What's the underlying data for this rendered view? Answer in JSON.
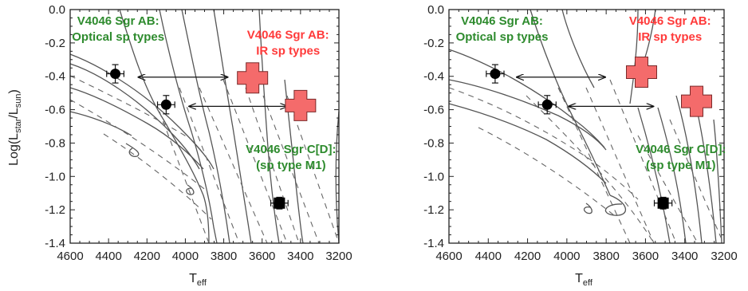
{
  "chart_data": [
    {
      "type": "scatter",
      "panel": "left",
      "xlabel_main": "T",
      "xlabel_sub": "eff",
      "ylabel_prefix": "Log(L",
      "ylabel_sub1": "star",
      "ylabel_mid": "/L",
      "ylabel_sub2": "sun",
      "ylabel_suffix": ")",
      "xlim": [
        4600,
        3200
      ],
      "ylim": [
        -1.4,
        0.0
      ],
      "xticks": [
        "4600",
        "4400",
        "4200",
        "4000",
        "3800",
        "3600",
        "3400",
        "3200"
      ],
      "yticks": [
        "0.0",
        "-0.2",
        "-0.4",
        "-0.6",
        "-0.8",
        "-1.0",
        "-1.2",
        "-1.4"
      ],
      "points": [
        {
          "x": 4365,
          "y": -0.385,
          "xerr": 45,
          "yerr": 0.055,
          "marker": "circle"
        },
        {
          "x": 4100,
          "y": -0.57,
          "xerr": 45,
          "yerr": 0.055,
          "marker": "circle"
        },
        {
          "x": 3510,
          "y": -1.16,
          "xerr": 45,
          "yerr": 0.035,
          "marker": "square"
        },
        {
          "x": 3650,
          "y": -0.41,
          "marker": "cross",
          "color": "#f46b6b"
        },
        {
          "x": 3400,
          "y": -0.575,
          "marker": "cross",
          "color": "#f46b6b"
        }
      ],
      "arrows": [
        {
          "x1": 4245,
          "y1": -0.405,
          "x2": 3780,
          "y2": -0.405
        },
        {
          "x1": 3980,
          "y1": -0.58,
          "x2": 3470,
          "y2": -0.58
        }
      ],
      "annotations": [
        {
          "lines": [
            "V4046 Sgr AB:",
            "Optical sp types"
          ],
          "color": "#2e8b2e",
          "x": 4350,
          "y": -0.09
        },
        {
          "lines": [
            "V4046 Sgr AB:",
            "IR sp types"
          ],
          "color": "#ff3a3a",
          "x": 3465,
          "y": -0.175
        },
        {
          "lines": [
            "V4046 Sgr C[D]:",
            "(sp type M1)"
          ],
          "color": "#2e8b2e",
          "x": 3450,
          "y": -0.86
        }
      ]
    },
    {
      "type": "scatter",
      "panel": "right",
      "xlabel_main": "T",
      "xlabel_sub": "eff",
      "xlim": [
        4600,
        3200
      ],
      "ylim": [
        -1.4,
        0.0
      ],
      "xticks": [
        "4600",
        "4400",
        "4200",
        "4000",
        "3800",
        "3600",
        "3400",
        "3200"
      ],
      "yticks": [
        "0.0",
        "-0.2",
        "-0.4",
        "-0.6",
        "-0.8",
        "-1.0",
        "-1.2",
        "-1.4"
      ],
      "points": [
        {
          "x": 4365,
          "y": -0.385,
          "xerr": 45,
          "yerr": 0.055,
          "marker": "circle"
        },
        {
          "x": 4100,
          "y": -0.57,
          "xerr": 45,
          "yerr": 0.055,
          "marker": "circle"
        },
        {
          "x": 3510,
          "y": -1.16,
          "xerr": 45,
          "yerr": 0.035,
          "marker": "square"
        },
        {
          "x": 3620,
          "y": -0.375,
          "marker": "cross",
          "color": "#f46b6b"
        },
        {
          "x": 3340,
          "y": -0.55,
          "marker": "cross",
          "color": "#f46b6b"
        }
      ],
      "arrows": [
        {
          "x1": 4255,
          "y1": -0.405,
          "x2": 3805,
          "y2": -0.405
        },
        {
          "x1": 3990,
          "y1": -0.58,
          "x2": 3560,
          "y2": -0.58
        }
      ],
      "annotations": [
        {
          "lines": [
            "V4046 Sgr AB:",
            "Optical sp types"
          ],
          "color": "#2e8b2e",
          "x": 4330,
          "y": -0.09
        },
        {
          "lines": [
            "V4046 Sgr AB:",
            "IR sp types"
          ],
          "color": "#ff3a3a",
          "x": 3475,
          "y": -0.09
        },
        {
          "lines": [
            "V4046 Sgr C[D]:",
            "(sp type M1)"
          ],
          "color": "#2e8b2e",
          "x": 3420,
          "y": -0.86
        }
      ]
    }
  ]
}
